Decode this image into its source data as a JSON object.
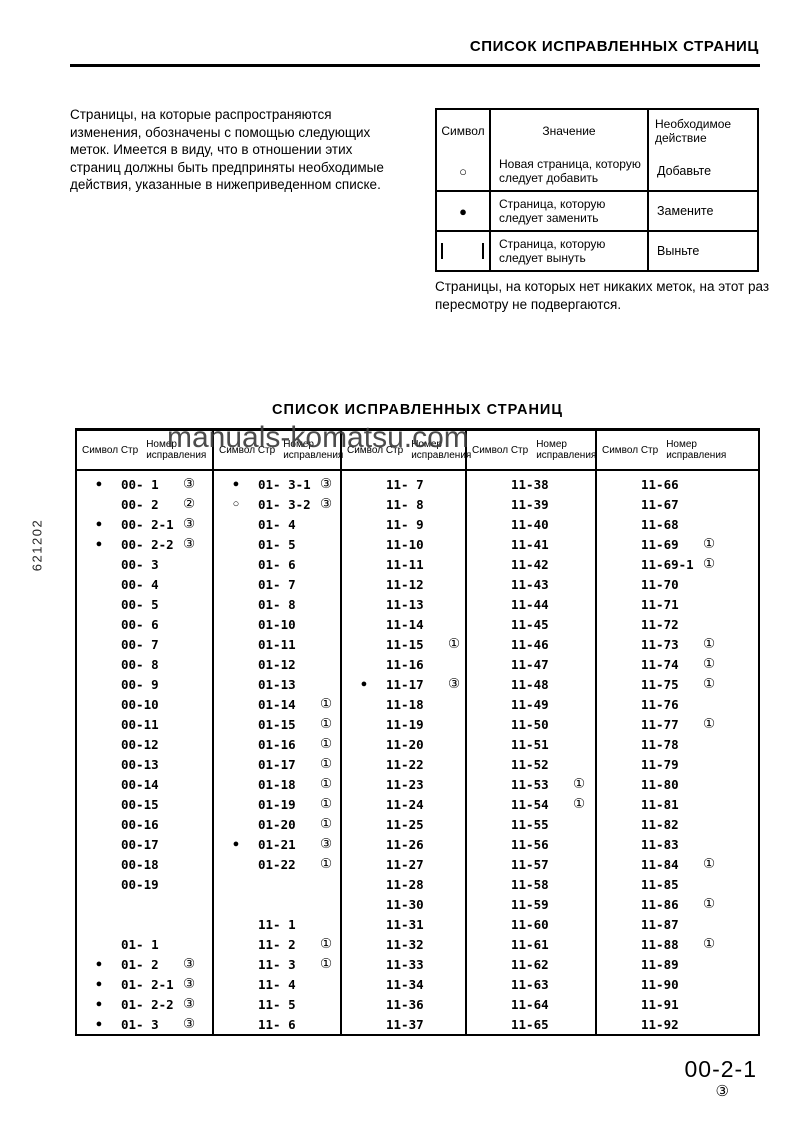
{
  "page": {
    "header_title": "СПИСОК ИСПРАВЛЕННЫХ СТРАНИЦ",
    "intro_text": "Страницы, на которые распространяются\nизменения, обозначены с помощью следующих\nметок. Имеется в виду, что в отношении этих\nстраниц должны быть предприняты необходимые\nдействия, указанные в нижеприведенном списке.",
    "note_text": "Страницы, на которых нет никаких меток, на этот раз\nпересмотру не подвергаются.",
    "watermark": "manuals-komatsu.com",
    "side_code": "621202",
    "footer_page": "00-2-1",
    "footer_revision": "③",
    "accent_color": "#000000",
    "watermark_color": "#3d3d3d"
  },
  "legend_table": {
    "headers": [
      "Символ",
      "Значение",
      "Необходимое\nдействие"
    ],
    "rows": [
      {
        "icon": "circle-empty",
        "meaning": "Новая страница, которую\nследует добавить",
        "action": "Добавьте"
      },
      {
        "icon": "circle-filled",
        "meaning": "Страница, которую\nследует заменить",
        "action": "Замените"
      },
      {
        "icon": "removal-marks",
        "meaning": "Страница, которую\nследует вынуть",
        "action": "Выньте"
      }
    ]
  },
  "main_table": {
    "title": "СПИСОК ИСПРАВЛЕННЫХ СТРАНИЦ",
    "header_symbol_page": "Символ Стр",
    "header_revision": "Номер исправления",
    "columns": [
      [
        [
          "●",
          "00- 1",
          "③"
        ],
        [
          "",
          "00- 2",
          "②"
        ],
        [
          "●",
          "00- 2-1",
          "③"
        ],
        [
          "●",
          "00- 2-2",
          "③"
        ],
        [
          "",
          "00- 3",
          ""
        ],
        [
          "",
          "00- 4",
          ""
        ],
        [
          "",
          "00- 5",
          ""
        ],
        [
          "",
          "00- 6",
          ""
        ],
        [
          "",
          "00- 7",
          ""
        ],
        [
          "",
          "00- 8",
          ""
        ],
        [
          "",
          "00- 9",
          ""
        ],
        [
          "",
          "00-10",
          ""
        ],
        [
          "",
          "00-11",
          ""
        ],
        [
          "",
          "00-12",
          ""
        ],
        [
          "",
          "00-13",
          ""
        ],
        [
          "",
          "00-14",
          ""
        ],
        [
          "",
          "00-15",
          ""
        ],
        [
          "",
          "00-16",
          ""
        ],
        [
          "",
          "00-17",
          ""
        ],
        [
          "",
          "00-18",
          ""
        ],
        [
          "",
          "00-19",
          ""
        ],
        [
          "",
          "",
          ""
        ],
        [
          "",
          "",
          ""
        ],
        [
          "",
          "01- 1",
          ""
        ],
        [
          "●",
          "01- 2",
          "③"
        ],
        [
          "●",
          "01- 2-1",
          "③"
        ],
        [
          "●",
          "01- 2-2",
          "③"
        ],
        [
          "●",
          "01- 3",
          "③"
        ]
      ],
      [
        [
          "●",
          "01- 3-1",
          "③"
        ],
        [
          "○",
          "01- 3-2",
          "③"
        ],
        [
          "",
          "01- 4",
          ""
        ],
        [
          "",
          "01- 5",
          ""
        ],
        [
          "",
          "01- 6",
          ""
        ],
        [
          "",
          "01- 7",
          ""
        ],
        [
          "",
          "01- 8",
          ""
        ],
        [
          "",
          "01-10",
          ""
        ],
        [
          "",
          "01-11",
          ""
        ],
        [
          "",
          "01-12",
          ""
        ],
        [
          "",
          "01-13",
          ""
        ],
        [
          "",
          "01-14",
          "①"
        ],
        [
          "",
          "01-15",
          "①"
        ],
        [
          "",
          "01-16",
          "①"
        ],
        [
          "",
          "01-17",
          "①"
        ],
        [
          "",
          "01-18",
          "①"
        ],
        [
          "",
          "01-19",
          "①"
        ],
        [
          "",
          "01-20",
          "①"
        ],
        [
          "●",
          "01-21",
          "③"
        ],
        [
          "",
          "01-22",
          "①"
        ],
        [
          "",
          "",
          ""
        ],
        [
          "",
          "",
          ""
        ],
        [
          "",
          "11- 1",
          ""
        ],
        [
          "",
          "11- 2",
          "①"
        ],
        [
          "",
          "11- 3",
          "①"
        ],
        [
          "",
          "11- 4",
          ""
        ],
        [
          "",
          "11- 5",
          ""
        ],
        [
          "",
          "11- 6",
          ""
        ]
      ],
      [
        [
          "",
          "11- 7",
          ""
        ],
        [
          "",
          "11- 8",
          ""
        ],
        [
          "",
          "11- 9",
          ""
        ],
        [
          "",
          "11-10",
          ""
        ],
        [
          "",
          "11-11",
          ""
        ],
        [
          "",
          "11-12",
          ""
        ],
        [
          "",
          "11-13",
          ""
        ],
        [
          "",
          "11-14",
          ""
        ],
        [
          "",
          "11-15",
          "①"
        ],
        [
          "",
          "11-16",
          ""
        ],
        [
          "●",
          "11-17",
          "③"
        ],
        [
          "",
          "11-18",
          ""
        ],
        [
          "",
          "11-19",
          ""
        ],
        [
          "",
          "11-20",
          ""
        ],
        [
          "",
          "11-22",
          ""
        ],
        [
          "",
          "11-23",
          ""
        ],
        [
          "",
          "11-24",
          ""
        ],
        [
          "",
          "11-25",
          ""
        ],
        [
          "",
          "11-26",
          ""
        ],
        [
          "",
          "11-27",
          ""
        ],
        [
          "",
          "11-28",
          ""
        ],
        [
          "",
          "11-30",
          ""
        ],
        [
          "",
          "11-31",
          ""
        ],
        [
          "",
          "11-32",
          ""
        ],
        [
          "",
          "11-33",
          ""
        ],
        [
          "",
          "11-34",
          ""
        ],
        [
          "",
          "11-36",
          ""
        ],
        [
          "",
          "11-37",
          ""
        ]
      ],
      [
        [
          "",
          "11-38",
          ""
        ],
        [
          "",
          "11-39",
          ""
        ],
        [
          "",
          "11-40",
          ""
        ],
        [
          "",
          "11-41",
          ""
        ],
        [
          "",
          "11-42",
          ""
        ],
        [
          "",
          "11-43",
          ""
        ],
        [
          "",
          "11-44",
          ""
        ],
        [
          "",
          "11-45",
          ""
        ],
        [
          "",
          "11-46",
          ""
        ],
        [
          "",
          "11-47",
          ""
        ],
        [
          "",
          "11-48",
          ""
        ],
        [
          "",
          "11-49",
          ""
        ],
        [
          "",
          "11-50",
          ""
        ],
        [
          "",
          "11-51",
          ""
        ],
        [
          "",
          "11-52",
          ""
        ],
        [
          "",
          "11-53",
          "①"
        ],
        [
          "",
          "11-54",
          "①"
        ],
        [
          "",
          "11-55",
          ""
        ],
        [
          "",
          "11-56",
          ""
        ],
        [
          "",
          "11-57",
          ""
        ],
        [
          "",
          "11-58",
          ""
        ],
        [
          "",
          "11-59",
          ""
        ],
        [
          "",
          "11-60",
          ""
        ],
        [
          "",
          "11-61",
          ""
        ],
        [
          "",
          "11-62",
          ""
        ],
        [
          "",
          "11-63",
          ""
        ],
        [
          "",
          "11-64",
          ""
        ],
        [
          "",
          "11-65",
          ""
        ]
      ],
      [
        [
          "",
          "11-66",
          ""
        ],
        [
          "",
          "11-67",
          ""
        ],
        [
          "",
          "11-68",
          ""
        ],
        [
          "",
          "11-69",
          "①"
        ],
        [
          "",
          "11-69-1",
          "①"
        ],
        [
          "",
          "11-70",
          ""
        ],
        [
          "",
          "11-71",
          ""
        ],
        [
          "",
          "11-72",
          ""
        ],
        [
          "",
          "11-73",
          "①"
        ],
        [
          "",
          "11-74",
          "①"
        ],
        [
          "",
          "11-75",
          "①"
        ],
        [
          "",
          "11-76",
          ""
        ],
        [
          "",
          "11-77",
          "①"
        ],
        [
          "",
          "11-78",
          ""
        ],
        [
          "",
          "11-79",
          ""
        ],
        [
          "",
          "11-80",
          ""
        ],
        [
          "",
          "11-81",
          ""
        ],
        [
          "",
          "11-82",
          ""
        ],
        [
          "",
          "11-83",
          ""
        ],
        [
          "",
          "11-84",
          "①"
        ],
        [
          "",
          "11-85",
          ""
        ],
        [
          "",
          "11-86",
          "①"
        ],
        [
          "",
          "11-87",
          ""
        ],
        [
          "",
          "11-88",
          "①"
        ],
        [
          "",
          "11-89",
          ""
        ],
        [
          "",
          "11-90",
          ""
        ],
        [
          "",
          "11-91",
          ""
        ],
        [
          "",
          "11-92",
          ""
        ]
      ]
    ]
  }
}
